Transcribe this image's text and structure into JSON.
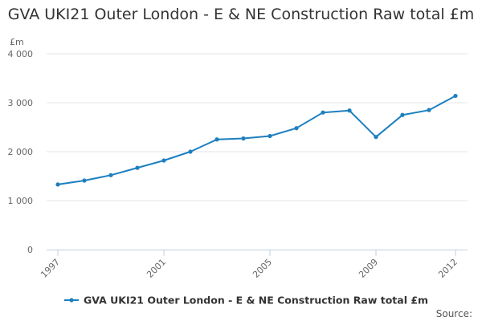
{
  "chart_data": {
    "type": "line",
    "title": "GVA UKI21 Outer London - E & NE Construction Raw total £m",
    "unit_label": "£m",
    "x": [
      1997,
      1998,
      1999,
      2000,
      2001,
      2002,
      2003,
      2004,
      2005,
      2006,
      2007,
      2008,
      2009,
      2010,
      2011,
      2012
    ],
    "x_tick_labels": [
      "1997",
      "2001",
      "2005",
      "2009",
      "2012"
    ],
    "y_tick_labels": [
      "0",
      "1 000",
      "2 000",
      "3 000",
      "4 000"
    ],
    "ylim": [
      0,
      4000
    ],
    "grid": "horizontal",
    "legend_position": "bottom",
    "series": [
      {
        "name": "GVA UKI21 Outer London - E & NE Construction Raw total £m",
        "color": "#1d7fc0",
        "values": [
          1330,
          1410,
          1520,
          1670,
          1820,
          2000,
          2250,
          2270,
          2320,
          2480,
          2800,
          2840,
          2300,
          2750,
          2850,
          3140
        ]
      }
    ]
  },
  "footer": {
    "source_label": "Source:"
  }
}
